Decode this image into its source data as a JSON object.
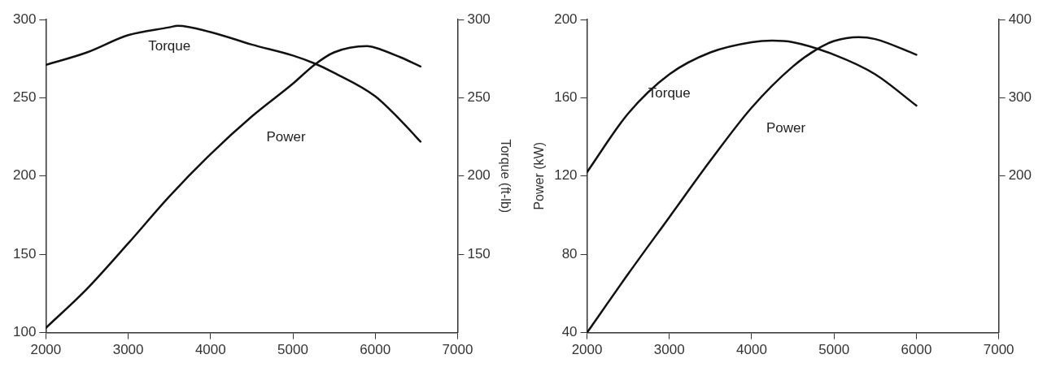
{
  "chart_data": [
    {
      "type": "line",
      "y2label": "Torque (ft-lb)",
      "xlim": [
        2000,
        7000
      ],
      "xticks": [
        2000,
        3000,
        4000,
        5000,
        6000,
        7000
      ],
      "ylim": [
        100,
        300
      ],
      "yticks": [
        100,
        150,
        200,
        250,
        300
      ],
      "y2lim": [
        100,
        300
      ],
      "y2ticks": [
        150,
        200,
        250,
        300
      ],
      "marker": "none",
      "series": [
        {
          "name": "Power",
          "color": "#111111",
          "x": [
            2000,
            2500,
            3000,
            3500,
            4000,
            4500,
            5000,
            5260,
            5500,
            5900,
            6000,
            6300,
            6550
          ],
          "values": [
            103,
            128,
            157,
            187,
            214,
            238,
            259,
            271,
            279,
            283,
            282,
            276,
            270
          ]
        },
        {
          "name": "Torque",
          "color": "#111111",
          "axis": "y2",
          "x": [
            2000,
            2500,
            3000,
            3500,
            3600,
            4000,
            4500,
            5000,
            5260,
            5500,
            6000,
            6300,
            6550
          ],
          "values": [
            271,
            279,
            290,
            295,
            296,
            292,
            284,
            277,
            272,
            266,
            251,
            236,
            222
          ]
        }
      ]
    },
    {
      "type": "line",
      "ylabel": "Power (kW)",
      "xlim": [
        2000,
        7000
      ],
      "xticks": [
        2000,
        3000,
        4000,
        5000,
        6000,
        7000
      ],
      "ylim": [
        40,
        200
      ],
      "yticks": [
        40,
        80,
        120,
        160,
        200
      ],
      "y2lim": [
        0,
        400
      ],
      "y2ticks": [
        200,
        300,
        400
      ],
      "marker": "none",
      "series": [
        {
          "name": "Power",
          "color": "#111111",
          "x": [
            2000,
            2500,
            3000,
            3500,
            4000,
            4500,
            4800,
            5000,
            5300,
            5500,
            6000
          ],
          "values": [
            40,
            70,
            99,
            128,
            155,
            176,
            185,
            189,
            191,
            190,
            182
          ]
        },
        {
          "name": "Torque",
          "color": "#111111",
          "axis": "y2",
          "x": [
            2000,
            2500,
            3000,
            3500,
            4000,
            4250,
            4500,
            5000,
            5500,
            6000
          ],
          "values": [
            205,
            280,
            330,
            358,
            371,
            373,
            371,
            355,
            330,
            290
          ]
        }
      ]
    }
  ]
}
